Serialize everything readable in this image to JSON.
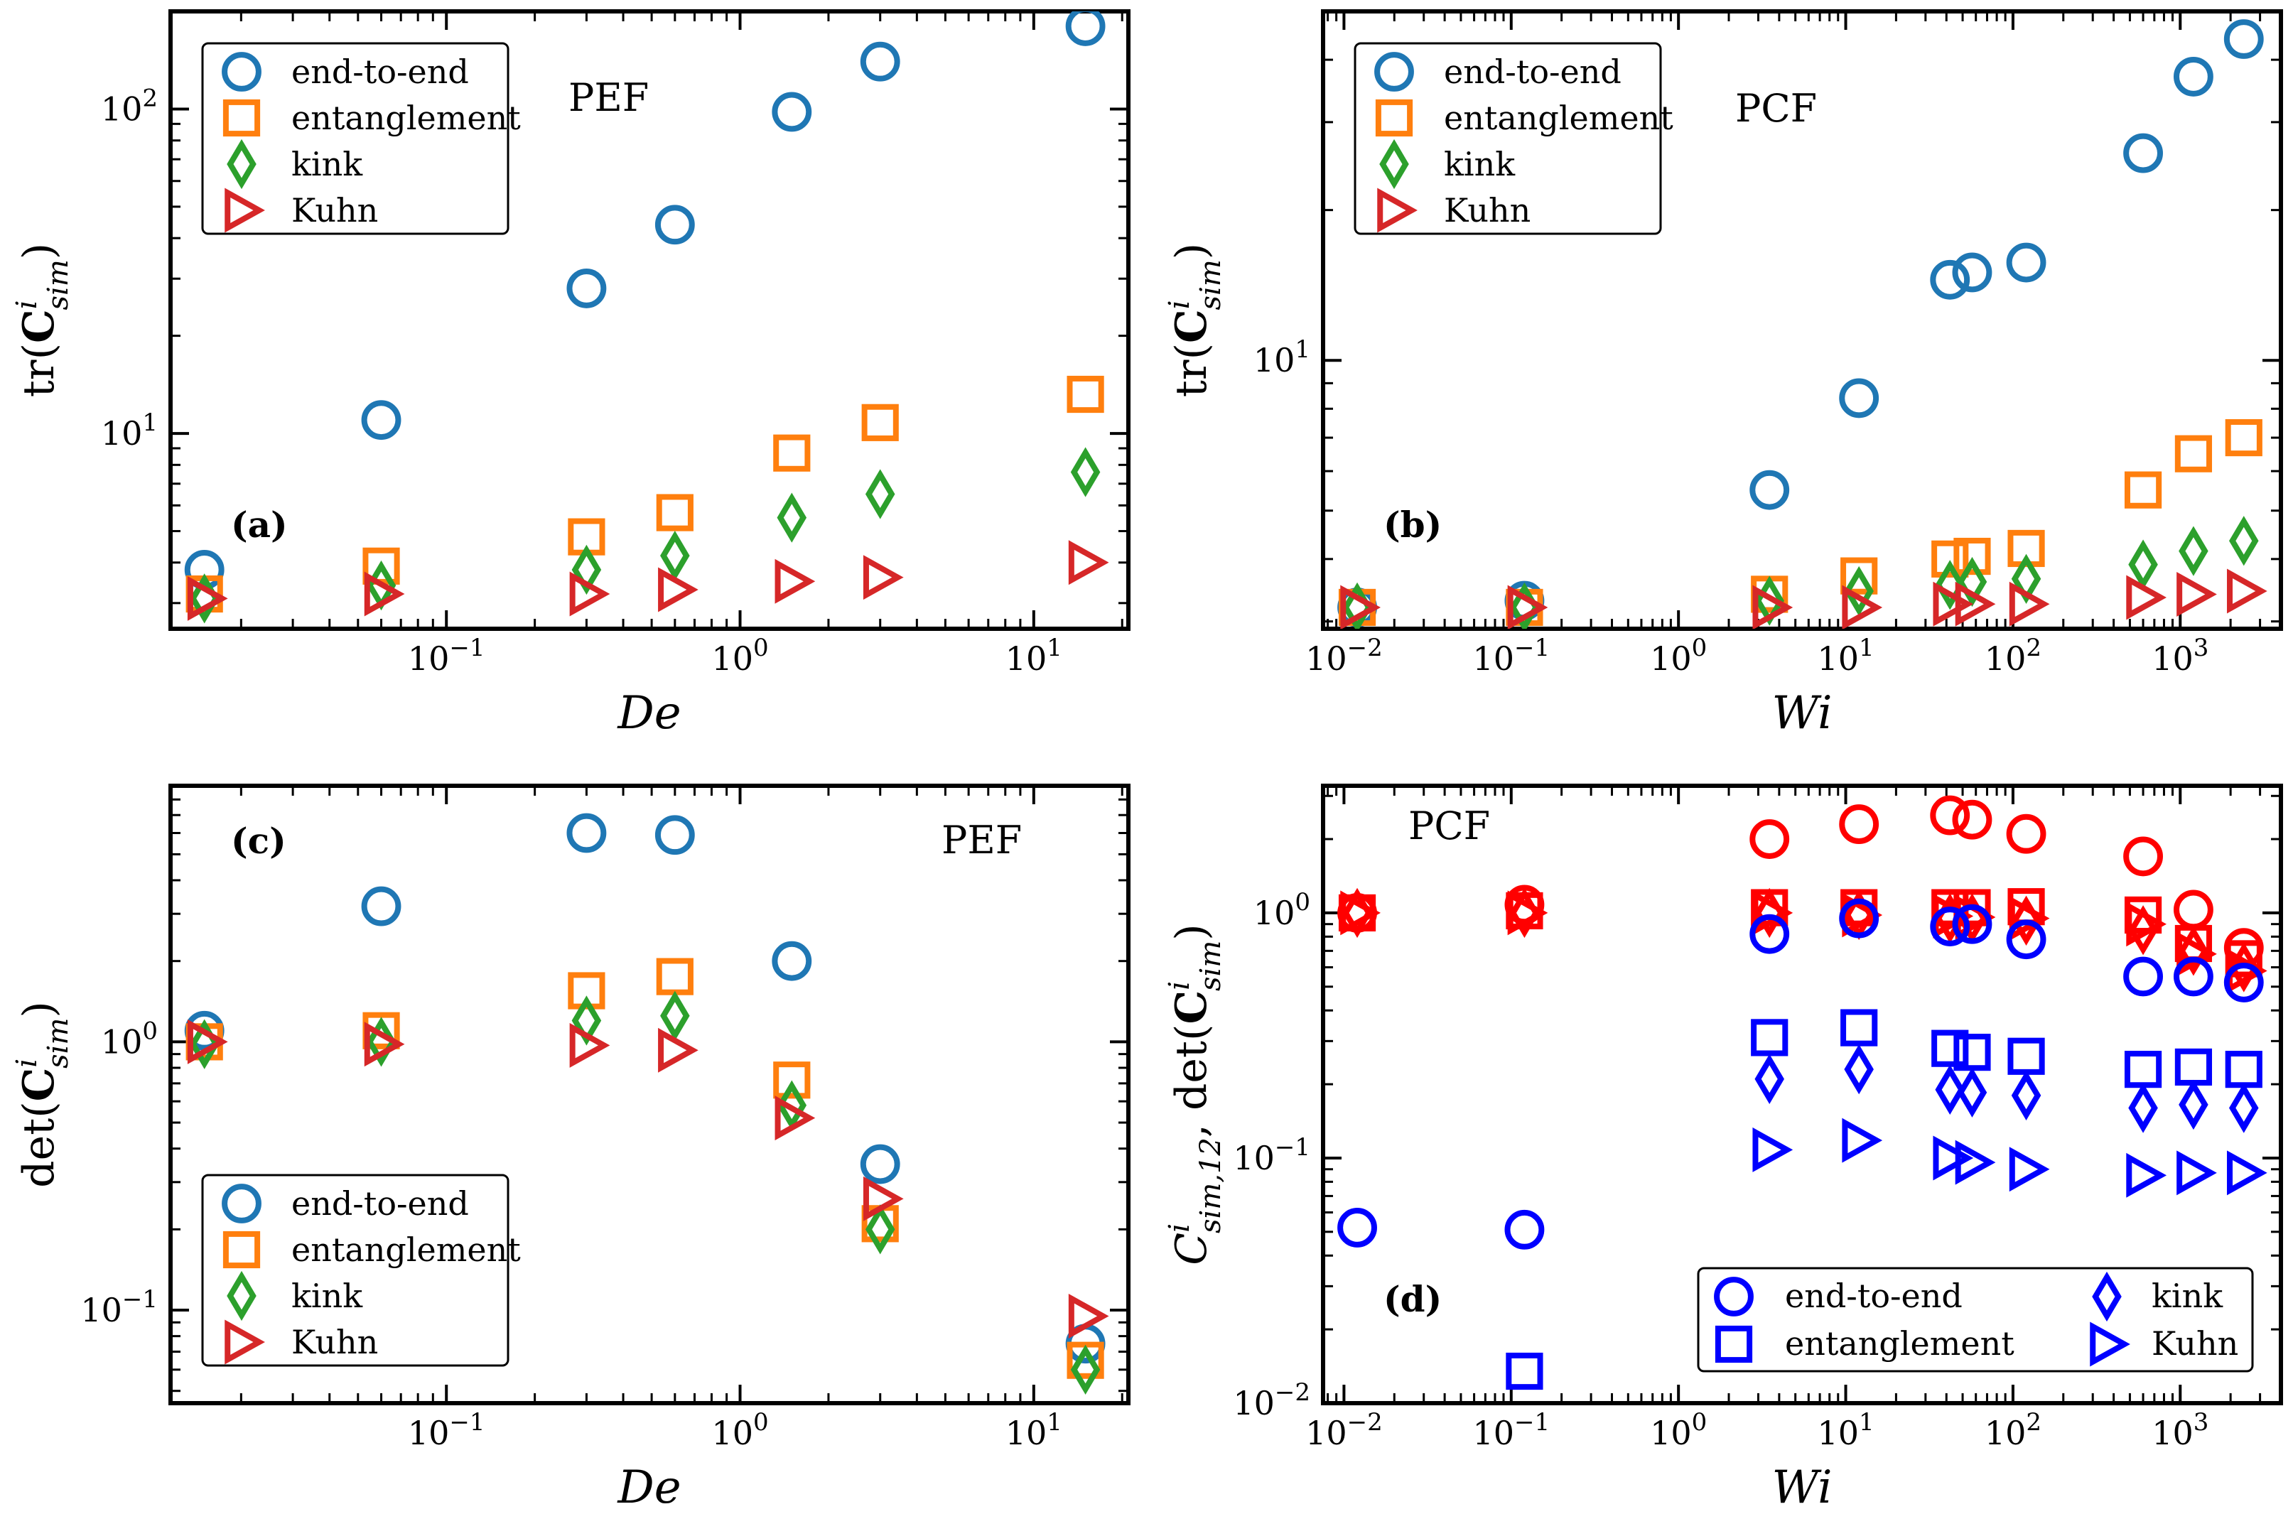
{
  "figure": {
    "colors": {
      "end_to_end": "#1f77b4",
      "entanglement": "#ff7f0e",
      "kink": "#2ca02c",
      "Kuhn": "#d62728",
      "d_det": "#ff0000",
      "d_offdiag": "#0000ff"
    }
  },
  "chart_data": [
    {
      "panel": "a",
      "type": "scatter",
      "tag": "(a)",
      "annotation": "PEF",
      "xlabel": "De",
      "ylabel_parts": {
        "pre": "tr(",
        "bold": "C",
        "sup": "i",
        "sub": "sim",
        "post": ")"
      },
      "xscale": "log",
      "yscale": "log",
      "xlim": [
        0.0115,
        21
      ],
      "ylim": [
        2.5,
        200
      ],
      "xticks": [
        {
          "v": 0.1,
          "base": "10",
          "exp": "−1"
        },
        {
          "v": 1,
          "base": "10",
          "exp": "0"
        },
        {
          "v": 10,
          "base": "10",
          "exp": "1"
        }
      ],
      "yticks": [
        {
          "v": 10,
          "base": "10",
          "exp": "1"
        },
        {
          "v": 100,
          "base": "10",
          "exp": "2"
        }
      ],
      "legend": {
        "position": "top-left",
        "entries": [
          "end-to-end",
          "entanglement",
          "kink",
          "Kuhn"
        ]
      },
      "series": [
        {
          "name": "end-to-end",
          "marker": "circle",
          "color": "#1f77b4",
          "x": [
            0.015,
            0.06,
            0.3,
            0.6,
            1.5,
            3,
            15
          ],
          "y": [
            3.8,
            11,
            28,
            44,
            98,
            140,
            180
          ]
        },
        {
          "name": "entanglement",
          "marker": "square",
          "color": "#ff7f0e",
          "x": [
            0.015,
            0.06,
            0.3,
            0.6,
            1.5,
            3,
            15
          ],
          "y": [
            3.2,
            3.9,
            4.8,
            5.7,
            8.7,
            10.8,
            13.2
          ]
        },
        {
          "name": "kink",
          "marker": "diamond",
          "color": "#2ca02c",
          "x": [
            0.015,
            0.06,
            0.3,
            0.6,
            1.5,
            3,
            15
          ],
          "y": [
            3.1,
            3.4,
            3.8,
            4.2,
            5.5,
            6.5,
            7.6
          ]
        },
        {
          "name": "Kuhn",
          "marker": "triangle-right",
          "color": "#d62728",
          "x": [
            0.015,
            0.06,
            0.3,
            0.6,
            1.5,
            3,
            15
          ],
          "y": [
            3.1,
            3.2,
            3.2,
            3.3,
            3.5,
            3.6,
            4.0
          ]
        }
      ]
    },
    {
      "panel": "b",
      "type": "scatter",
      "tag": "(b)",
      "annotation": "PCF",
      "xlabel": "Wi",
      "ylabel_parts": {
        "pre": "tr(",
        "bold": "C",
        "sup": "i",
        "sub": "sim",
        "post": ")"
      },
      "xscale": "log",
      "yscale": "log",
      "xlim": [
        0.0075,
        4000
      ],
      "ylim": [
        2.9,
        50
      ],
      "xticks": [
        {
          "v": 0.01,
          "base": "10",
          "exp": "−2"
        },
        {
          "v": 0.1,
          "base": "10",
          "exp": "−1"
        },
        {
          "v": 1,
          "base": "10",
          "exp": "0"
        },
        {
          "v": 10,
          "base": "10",
          "exp": "1"
        },
        {
          "v": 100,
          "base": "10",
          "exp": "2"
        },
        {
          "v": 1000,
          "base": "10",
          "exp": "3"
        }
      ],
      "yticks": [
        {
          "v": 10,
          "base": "10",
          "exp": "1"
        }
      ],
      "legend": {
        "position": "top-left",
        "entries": [
          "end-to-end",
          "entanglement",
          "kink",
          "Kuhn"
        ]
      },
      "series": [
        {
          "name": "end-to-end",
          "marker": "circle",
          "color": "#1f77b4",
          "x": [
            0.012,
            0.12,
            3.5,
            12,
            42,
            57,
            120,
            600,
            1200,
            2400
          ],
          "y": [
            3.2,
            3.3,
            5.5,
            8.4,
            14.5,
            15.0,
            15.7,
            26,
            37,
            44
          ]
        },
        {
          "name": "entanglement",
          "marker": "square",
          "color": "#ff7f0e",
          "x": [
            0.012,
            0.12,
            3.5,
            12,
            42,
            57,
            120,
            600,
            1200,
            2400
          ],
          "y": [
            3.2,
            3.2,
            3.4,
            3.7,
            4.0,
            4.05,
            4.2,
            5.5,
            6.5,
            7.0
          ]
        },
        {
          "name": "kink",
          "marker": "diamond",
          "color": "#2ca02c",
          "x": [
            0.012,
            0.12,
            3.5,
            12,
            42,
            57,
            120,
            600,
            1200,
            2400
          ],
          "y": [
            3.2,
            3.2,
            3.3,
            3.45,
            3.55,
            3.6,
            3.65,
            3.9,
            4.15,
            4.35
          ]
        },
        {
          "name": "Kuhn",
          "marker": "triangle-right",
          "color": "#d62728",
          "x": [
            0.012,
            0.12,
            3.5,
            12,
            42,
            57,
            120,
            600,
            1200,
            2400
          ],
          "y": [
            3.2,
            3.2,
            3.2,
            3.2,
            3.25,
            3.25,
            3.25,
            3.35,
            3.4,
            3.45
          ]
        }
      ]
    },
    {
      "panel": "c",
      "type": "scatter",
      "tag": "(c)",
      "annotation": "PEF",
      "xlabel": "De",
      "ylabel_parts": {
        "pre": "det(",
        "bold": "C",
        "sup": "i",
        "sub": "sim",
        "post": ")"
      },
      "xscale": "log",
      "yscale": "log",
      "xlim": [
        0.0115,
        21
      ],
      "ylim": [
        0.045,
        9
      ],
      "xticks": [
        {
          "v": 0.1,
          "base": "10",
          "exp": "−1"
        },
        {
          "v": 1,
          "base": "10",
          "exp": "0"
        },
        {
          "v": 10,
          "base": "10",
          "exp": "1"
        }
      ],
      "yticks": [
        {
          "v": 0.1,
          "base": "10",
          "exp": "−1"
        },
        {
          "v": 1,
          "base": "10",
          "exp": "0"
        }
      ],
      "legend": {
        "position": "bottom-left",
        "entries": [
          "end-to-end",
          "entanglement",
          "kink",
          "Kuhn"
        ]
      },
      "series": [
        {
          "name": "end-to-end",
          "marker": "circle",
          "color": "#1f77b4",
          "x": [
            0.015,
            0.06,
            0.3,
            0.6,
            1.5,
            3,
            15
          ],
          "y": [
            1.1,
            3.2,
            6.0,
            5.9,
            2.0,
            0.35,
            0.075
          ]
        },
        {
          "name": "entanglement",
          "marker": "square",
          "color": "#ff7f0e",
          "x": [
            0.015,
            0.06,
            0.3,
            0.6,
            1.5,
            3,
            15
          ],
          "y": [
            1.0,
            1.1,
            1.55,
            1.75,
            0.72,
            0.21,
            0.065
          ]
        },
        {
          "name": "kink",
          "marker": "diamond",
          "color": "#2ca02c",
          "x": [
            0.015,
            0.06,
            0.3,
            0.6,
            1.5,
            3,
            15
          ],
          "y": [
            0.98,
            1.0,
            1.2,
            1.25,
            0.58,
            0.2,
            0.06
          ]
        },
        {
          "name": "Kuhn",
          "marker": "triangle-right",
          "color": "#d62728",
          "x": [
            0.015,
            0.06,
            0.3,
            0.6,
            1.5,
            3,
            15
          ],
          "y": [
            1.0,
            0.98,
            0.97,
            0.93,
            0.52,
            0.26,
            0.095
          ]
        }
      ]
    },
    {
      "panel": "d",
      "type": "scatter",
      "tag": "(d)",
      "annotation": "PCF",
      "xlabel": "Wi",
      "ylabel_parts": {
        "sym": "C",
        "sup": "i",
        "sub": "sim,12",
        "mid": ", det(",
        "bold": "C",
        "sup2": "i",
        "sub2": "sim",
        "post": ")"
      },
      "xscale": "log",
      "yscale": "log",
      "xlim": [
        0.0075,
        4000
      ],
      "ylim": [
        0.01,
        3.3
      ],
      "xticks": [
        {
          "v": 0.01,
          "base": "10",
          "exp": "−2"
        },
        {
          "v": 0.1,
          "base": "10",
          "exp": "−1"
        },
        {
          "v": 1,
          "base": "10",
          "exp": "0"
        },
        {
          "v": 10,
          "base": "10",
          "exp": "1"
        },
        {
          "v": 100,
          "base": "10",
          "exp": "2"
        },
        {
          "v": 1000,
          "base": "10",
          "exp": "3"
        }
      ],
      "yticks": [
        {
          "v": 0.01,
          "base": "10",
          "exp": "−2"
        },
        {
          "v": 0.1,
          "base": "10",
          "exp": "−1"
        },
        {
          "v": 1,
          "base": "10",
          "exp": "0"
        }
      ],
      "legend": {
        "position": "bottom-right",
        "entries": [
          "end-to-end",
          "entanglement",
          "kink",
          "Kuhn"
        ]
      },
      "series": [
        {
          "name": "end-to-end det",
          "marker": "circle",
          "color": "#ff0000",
          "x": [
            0.012,
            0.12,
            3.5,
            12,
            42,
            57,
            120,
            600,
            1200,
            2400
          ],
          "y": [
            1.0,
            1.08,
            2.0,
            2.3,
            2.5,
            2.4,
            2.1,
            1.7,
            1.03,
            0.72
          ]
        },
        {
          "name": "entanglement det",
          "marker": "square",
          "color": "#ff0000",
          "x": [
            0.012,
            0.12,
            3.5,
            12,
            42,
            57,
            120,
            600,
            1200,
            2400
          ],
          "y": [
            1.0,
            1.02,
            1.05,
            1.05,
            1.05,
            1.05,
            1.06,
            0.98,
            0.75,
            0.65
          ]
        },
        {
          "name": "kink det",
          "marker": "diamond",
          "color": "#ff0000",
          "x": [
            0.012,
            0.12,
            3.5,
            12,
            42,
            57,
            120,
            600,
            1200,
            2400
          ],
          "y": [
            1.0,
            1.0,
            1.0,
            0.98,
            0.95,
            0.95,
            0.93,
            0.85,
            0.7,
            0.6
          ]
        },
        {
          "name": "Kuhn det",
          "marker": "triangle-right",
          "color": "#ff0000",
          "x": [
            0.012,
            0.12,
            3.5,
            12,
            42,
            57,
            120,
            600,
            1200,
            2400
          ],
          "y": [
            1.0,
            1.0,
            1.0,
            0.98,
            0.97,
            0.96,
            0.95,
            0.9,
            0.68,
            0.58
          ]
        },
        {
          "name": "end-to-end C12",
          "marker": "circle",
          "color": "#0000ff",
          "x": [
            0.012,
            0.12,
            3.5,
            12,
            42,
            57,
            120,
            600,
            1200,
            2400
          ],
          "y": [
            0.052,
            0.051,
            0.82,
            0.95,
            0.88,
            0.9,
            0.78,
            0.55,
            0.55,
            0.52
          ]
        },
        {
          "name": "entanglement C12",
          "marker": "square",
          "color": "#0000ff",
          "x": [
            0.12,
            3.5,
            12,
            42,
            57,
            120,
            600,
            1200,
            2400
          ],
          "y": [
            0.0135,
            0.31,
            0.34,
            0.28,
            0.27,
            0.26,
            0.23,
            0.235,
            0.23
          ]
        },
        {
          "name": "kink C12",
          "marker": "diamond",
          "color": "#0000ff",
          "x": [
            3.5,
            12,
            42,
            57,
            120,
            600,
            1200,
            2400
          ],
          "y": [
            0.21,
            0.23,
            0.19,
            0.185,
            0.18,
            0.16,
            0.165,
            0.16
          ]
        },
        {
          "name": "Kuhn C12",
          "marker": "triangle-right",
          "color": "#0000ff",
          "x": [
            3.5,
            12,
            42,
            57,
            120,
            600,
            1200,
            2400
          ],
          "y": [
            0.108,
            0.118,
            0.1,
            0.096,
            0.09,
            0.085,
            0.087,
            0.087
          ]
        }
      ]
    }
  ]
}
